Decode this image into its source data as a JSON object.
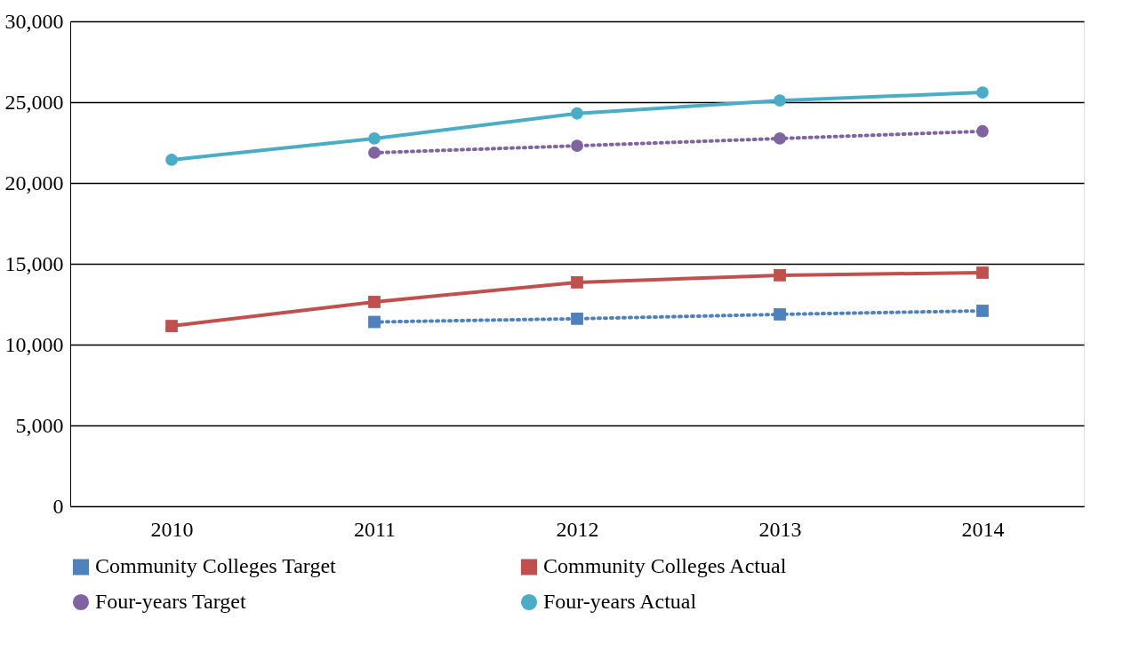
{
  "chart_data": {
    "type": "line",
    "categories": [
      "2010",
      "2011",
      "2012",
      "2013",
      "2014"
    ],
    "series": [
      {
        "name": "Community Colleges Target",
        "color": "#4f81bd",
        "line_style": "dotted",
        "marker": "square",
        "values": [
          null,
          11400,
          11600,
          11870,
          12090
        ]
      },
      {
        "name": "Community Colleges Actual",
        "color": "#c0504d",
        "line_style": "solid",
        "marker": "square",
        "values": [
          11150,
          12640,
          13850,
          14290,
          14450
        ]
      },
      {
        "name": "Four-years Target",
        "color": "#8064a2",
        "line_style": "dotted",
        "marker": "circle",
        "values": [
          null,
          21870,
          22300,
          22750,
          23200
        ]
      },
      {
        "name": "Four-years Actual",
        "color": "#4bacc6",
        "line_style": "solid",
        "marker": "circle",
        "values": [
          21430,
          22750,
          24300,
          25100,
          25600
        ]
      }
    ],
    "ylim": [
      0,
      30000
    ],
    "yticks": [
      {
        "value": 0,
        "label": "0"
      },
      {
        "value": 5000,
        "label": "5,000"
      },
      {
        "value": 10000,
        "label": "10,000"
      },
      {
        "value": 15000,
        "label": "15,000"
      },
      {
        "value": 20000,
        "label": "20,000"
      },
      {
        "value": 25000,
        "label": "25,000"
      },
      {
        "value": 30000,
        "label": "30,000"
      }
    ],
    "grid": "y",
    "legend": "bottom"
  }
}
